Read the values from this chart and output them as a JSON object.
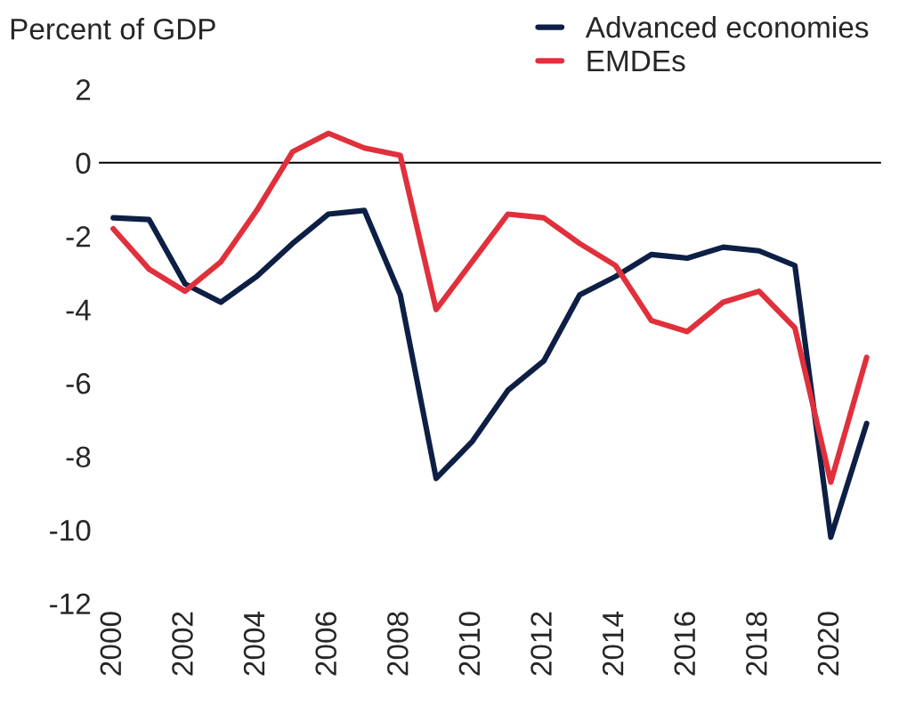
{
  "chart_data": {
    "type": "line",
    "ylabel": "Percent of GDP",
    "x": [
      2000,
      2001,
      2002,
      2003,
      2004,
      2005,
      2006,
      2007,
      2008,
      2009,
      2010,
      2011,
      2012,
      2013,
      2014,
      2015,
      2016,
      2017,
      2018,
      2019,
      2020,
      2021
    ],
    "series": [
      {
        "name": "Advanced economies",
        "color": "#0d1f45",
        "values": [
          -1.5,
          -1.55,
          -3.3,
          -3.8,
          -3.1,
          -2.2,
          -1.4,
          -1.3,
          -3.6,
          -8.6,
          -7.6,
          -6.2,
          -5.4,
          -3.6,
          -3.1,
          -2.5,
          -2.6,
          -2.3,
          -2.4,
          -2.8,
          -10.2,
          -7.1
        ]
      },
      {
        "name": "EMDEs",
        "color": "#e0303c",
        "values": [
          -1.8,
          -2.9,
          -3.5,
          -2.7,
          -1.3,
          0.3,
          0.8,
          0.4,
          0.2,
          -4.0,
          -2.7,
          -1.4,
          -1.5,
          -2.2,
          -2.8,
          -4.3,
          -4.6,
          -3.8,
          -3.5,
          -4.5,
          -8.7,
          -5.3
        ]
      }
    ],
    "xlim": [
      1999.6,
      2021.4
    ],
    "xticks": [
      2000,
      2002,
      2004,
      2006,
      2008,
      2010,
      2012,
      2014,
      2016,
      2018,
      2020
    ],
    "ylim": [
      -12,
      2
    ],
    "yticks": [
      -12,
      -10,
      -8,
      -6,
      -4,
      -2,
      0,
      2
    ],
    "ref_lines": [
      {
        "axis": "y",
        "value": 0,
        "color": "#000000"
      }
    ],
    "grid": false,
    "legend": "top right"
  }
}
